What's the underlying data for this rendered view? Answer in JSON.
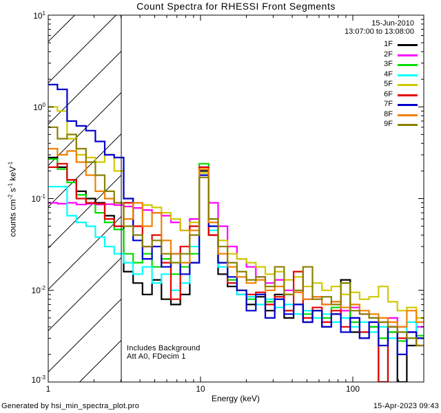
{
  "title": "Count Spectra for RHESSI Front Segments",
  "header": {
    "date_line1": "15-Jun-2010",
    "date_line2": "13:07:00 to 13:08:00"
  },
  "annotations": {
    "line1": "Includes Background",
    "line2": "Att A0, FDecim 1"
  },
  "footer": {
    "left": "Generated by hsi_min_spectra_plot.pro",
    "right": "15-Apr-2023 09:43"
  },
  "axes": {
    "xlabel": "Energy (keV)",
    "x_ticks": [
      "1",
      "10",
      "100"
    ],
    "y_ticks": [
      {
        "base": "10",
        "exp": "1"
      },
      {
        "base": "10",
        "exp": "0"
      },
      {
        "base": "10",
        "exp": "-1"
      },
      {
        "base": "10",
        "exp": "-2"
      },
      {
        "base": "10",
        "exp": "-3"
      }
    ],
    "ylabel_t1": "counts cm",
    "ylabel_s1": "-2",
    "ylabel_t2": " s",
    "ylabel_s2": "-1",
    "ylabel_t3": " keV",
    "ylabel_s3": "-1"
  },
  "chart_data": {
    "type": "line",
    "subtype": "step-histogram-spectra",
    "title": "Count Spectra for RHESSI Front Segments",
    "xlabel": "Energy (keV)",
    "ylabel": "counts cm^-2 s^-1 keV^-1",
    "x_scale": "log",
    "y_scale": "log",
    "xlim": [
      1,
      292
    ],
    "ylim": [
      0.001,
      10
    ],
    "hatched_region_kev": [
      1,
      3
    ],
    "legend_position": "top-right",
    "bin_edges_kev": [
      1.0,
      1.15,
      1.33,
      1.53,
      1.77,
      2.04,
      2.35,
      2.71,
      3.13,
      3.61,
      4.16,
      4.8,
      5.54,
      6.39,
      7.37,
      8.5,
      9.8,
      11.31,
      13.04,
      15.04,
      17.35,
      20.01,
      23.08,
      26.62,
      30.71,
      35.42,
      40.85,
      47.12,
      54.35,
      62.69,
      72.3,
      83.39,
      96.18,
      110.9,
      127.9,
      147.6,
      170.2,
      196.3,
      226.4,
      261.2,
      301.2
    ],
    "series": [
      {
        "name": "1F",
        "color": "#000000",
        "values": [
          0.28,
          0.22,
          0.16,
          0.12,
          0.1,
          0.09,
          0.065,
          0.05,
          0.016,
          0.012,
          0.009,
          0.013,
          0.008,
          0.007,
          0.009,
          0.02,
          0.2,
          0.04,
          0.015,
          0.011,
          0.009,
          0.007,
          0.0085,
          0.006,
          0.009,
          0.005,
          0.007,
          0.0045,
          0.006,
          0.004,
          0.0055,
          0.013,
          0.0035,
          0.003,
          0.004,
          0.001,
          0.0035,
          0.001,
          0.0025,
          0.003
        ]
      },
      {
        "name": "2F",
        "color": "#FF00FF",
        "values": [
          0.09,
          0.088,
          0.09,
          0.086,
          0.088,
          0.086,
          0.087,
          0.085,
          0.082,
          0.079,
          0.075,
          0.07,
          0.065,
          0.055,
          0.045,
          0.06,
          0.21,
          0.09,
          0.05,
          0.03,
          0.022,
          0.018,
          0.014,
          0.012,
          0.013,
          0.01,
          0.0095,
          0.008,
          0.0085,
          0.007,
          0.0075,
          0.006,
          0.0065,
          0.0055,
          0.005,
          0.0045,
          0.005,
          0.004,
          0.0035,
          0.004
        ]
      },
      {
        "name": "3F",
        "color": "#00DC00",
        "values": [
          0.27,
          0.21,
          0.15,
          0.11,
          0.09,
          0.07,
          0.055,
          0.046,
          0.025,
          0.02,
          0.025,
          0.018,
          0.022,
          0.015,
          0.018,
          0.025,
          0.24,
          0.05,
          0.02,
          0.013,
          0.01,
          0.008,
          0.009,
          0.0075,
          0.008,
          0.006,
          0.007,
          0.0055,
          0.006,
          0.005,
          0.0065,
          0.012,
          0.0045,
          0.0035,
          0.004,
          0.003,
          0.0035,
          0.0028,
          0.003,
          0.0032
        ]
      },
      {
        "name": "4F",
        "color": "#00FFFF",
        "values": [
          0.135,
          0.135,
          0.065,
          0.055,
          0.05,
          0.038,
          0.03,
          0.025,
          0.02,
          0.015,
          0.018,
          0.012,
          0.015,
          0.01,
          0.012,
          0.03,
          0.22,
          0.045,
          0.018,
          0.012,
          0.009,
          0.0085,
          0.007,
          0.008,
          0.0065,
          0.007,
          0.0055,
          0.006,
          0.005,
          0.0055,
          0.0045,
          0.005,
          0.004,
          0.0045,
          0.0035,
          0.004,
          0.003,
          0.0035,
          0.0045,
          0.003
        ]
      },
      {
        "name": "5F",
        "color": "#D0C800",
        "values": [
          1.0,
          0.9,
          0.45,
          0.3,
          0.28,
          0.25,
          0.3,
          0.2,
          0.1,
          0.09,
          0.085,
          0.08,
          0.07,
          0.06,
          0.045,
          0.055,
          0.19,
          0.06,
          0.035,
          0.025,
          0.022,
          0.02,
          0.018,
          0.015,
          0.016,
          0.013,
          0.014,
          0.011,
          0.012,
          0.01,
          0.011,
          0.009,
          0.0095,
          0.008,
          0.0085,
          0.011,
          0.0075,
          0.006,
          0.0065,
          0.005
        ]
      },
      {
        "name": "6F",
        "color": "#E60000",
        "values": [
          0.22,
          0.24,
          0.16,
          0.1,
          0.09,
          0.088,
          0.06,
          0.05,
          0.09,
          0.05,
          0.03,
          0.04,
          0.02,
          0.008,
          0.03,
          0.05,
          0.22,
          0.04,
          0.02,
          0.012,
          0.01,
          0.009,
          0.0095,
          0.007,
          0.0085,
          0.006,
          0.016,
          0.005,
          0.0065,
          0.0045,
          0.006,
          0.004,
          0.005,
          0.0035,
          0.0045,
          0.001,
          0.004,
          0.003,
          0.0035,
          0.0025
        ]
      },
      {
        "name": "7F",
        "color": "#0000CE",
        "values": [
          1.75,
          1.55,
          0.7,
          0.62,
          0.55,
          0.42,
          0.3,
          0.28,
          0.1,
          0.035,
          0.022,
          0.03,
          0.018,
          0.025,
          0.015,
          0.02,
          0.18,
          0.05,
          0.02,
          0.014,
          0.01,
          0.006,
          0.009,
          0.005,
          0.008,
          0.0055,
          0.007,
          0.0045,
          0.006,
          0.004,
          0.0055,
          0.0035,
          0.005,
          0.003,
          0.0045,
          0.0025,
          0.004,
          0.002,
          0.0035,
          0.003
        ]
      },
      {
        "name": "8F",
        "color": "#F08000",
        "values": [
          0.35,
          0.3,
          0.33,
          0.25,
          0.18,
          0.12,
          0.1,
          0.09,
          0.06,
          0.09,
          0.05,
          0.07,
          0.035,
          0.025,
          0.02,
          0.045,
          0.21,
          0.055,
          0.025,
          0.018,
          0.014,
          0.012,
          0.013,
          0.01,
          0.011,
          0.009,
          0.0095,
          0.008,
          0.0085,
          0.007,
          0.0075,
          0.0065,
          0.007,
          0.006,
          0.0055,
          0.005,
          0.0045,
          0.004,
          0.006,
          0.0045
        ]
      },
      {
        "name": "9F",
        "color": "#8A8000",
        "values": [
          0.6,
          0.45,
          0.5,
          0.35,
          0.25,
          0.18,
          0.12,
          0.09,
          0.05,
          0.04,
          0.03,
          0.035,
          0.025,
          0.02,
          0.025,
          0.04,
          0.17,
          0.06,
          0.03,
          0.02,
          0.016,
          0.013,
          0.014,
          0.011,
          0.018,
          0.009,
          0.01,
          0.018,
          0.008,
          0.0085,
          0.007,
          0.012,
          0.006,
          0.0055,
          0.005,
          0.0045,
          0.004,
          0.0035,
          0.003,
          0.0025
        ]
      }
    ]
  }
}
